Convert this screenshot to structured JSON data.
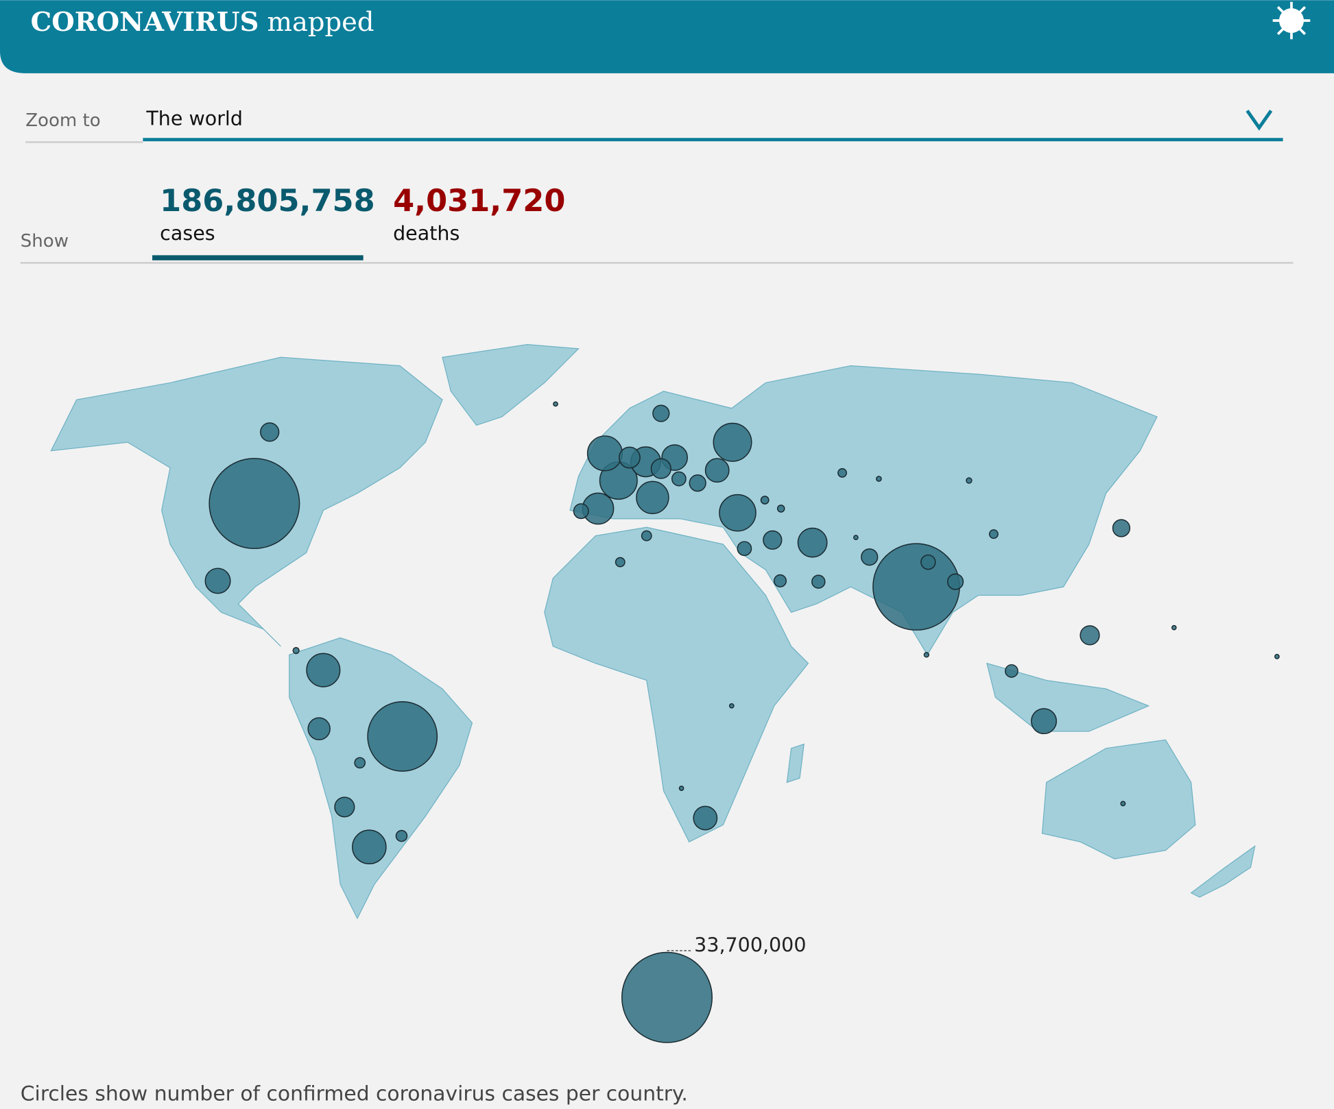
{
  "header": {
    "title_bold": "CORONAVIRUS",
    "title_rest": "mapped"
  },
  "zoom": {
    "label": "Zoom to",
    "selected": "The world"
  },
  "show": {
    "label": "Show",
    "cases": {
      "value": 186805758,
      "label": "186,805,758",
      "unit": "cases"
    },
    "deaths": {
      "value": 4031720,
      "label": "4,031,720",
      "unit": "deaths"
    }
  },
  "legend": {
    "value": 33700000,
    "label": "33,700,000"
  },
  "circles": [
    33700000,
    31000000,
    20000000,
    6000000,
    5800000,
    5000000,
    5500000,
    4700000,
    4600000,
    4300000,
    4000000,
    3700000,
    3500000,
    2700000,
    2600000,
    2600000,
    2300000,
    2300000,
    2000000,
    1800000,
    1600000,
    1600000,
    1400000,
    1500000,
    1400000,
    1100000,
    1000000,
    1100000,
    1100000,
    1200000,
    900000,
    800000,
    850000,
    800000,
    700000,
    650000,
    600000,
    500000,
    450000,
    400000,
    350000,
    300000,
    300000,
    250000,
    200000,
    150000,
    120000,
    100000,
    90000,
    80000,
    70000,
    60000,
    50000,
    40000,
    30000,
    25000
  ],
  "footnote": "Circles show number of confirmed coronavirus cases per country."
}
